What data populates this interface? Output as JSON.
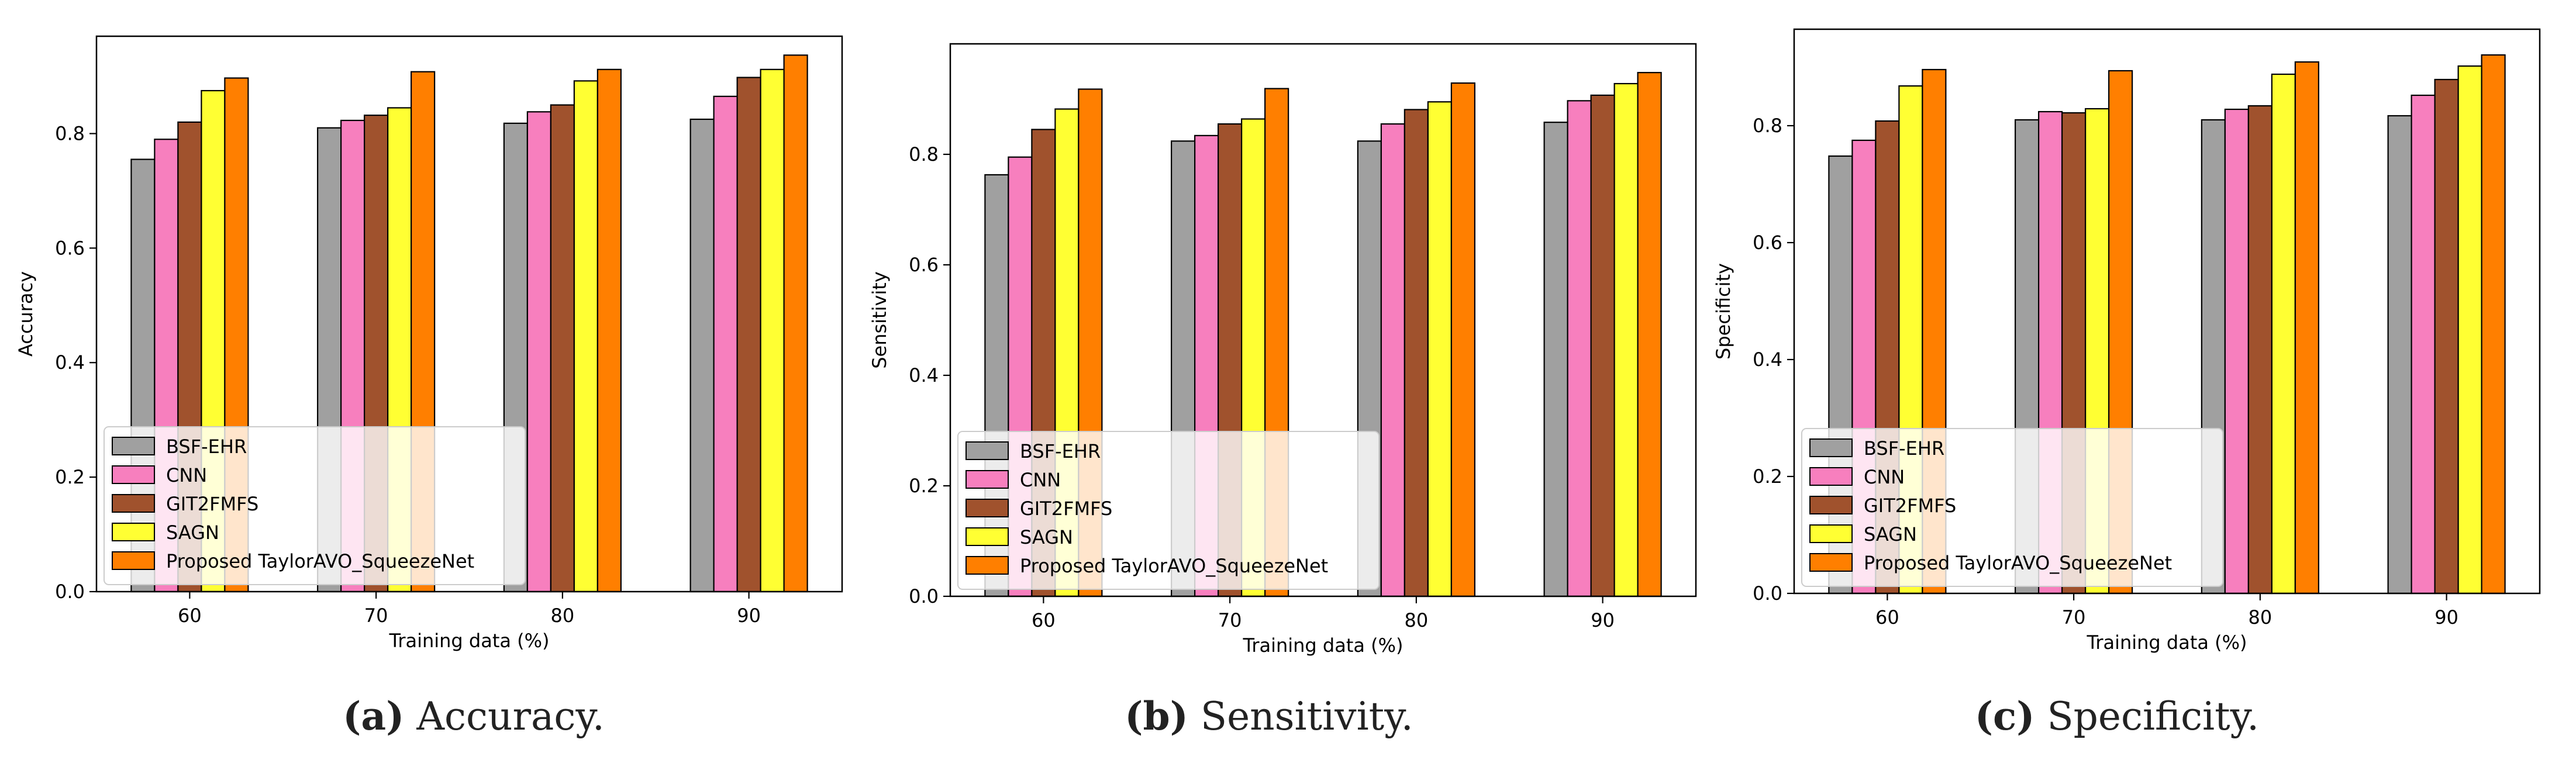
{
  "figure": {
    "legend_entries": [
      "BSF-EHR",
      "CNN",
      "GIT2FMFS",
      "SAGN",
      "Proposed TaylorAVO_SqueezeNet"
    ],
    "series_colors": [
      "#a0a0a0",
      "#f77fbe",
      "#a0522d",
      "#ffff33",
      "#ff7f00"
    ]
  },
  "chart_data": [
    {
      "type": "bar",
      "title": "",
      "xlabel": "Training data (%)",
      "ylabel": "Accuracy",
      "categories": [
        "60",
        "70",
        "80",
        "90"
      ],
      "ylim": [
        0,
        0.97
      ],
      "yticks": [
        "0.0",
        "0.2",
        "0.4",
        "0.6",
        "0.8"
      ],
      "legend_position": "lower-left",
      "series": [
        {
          "name": "BSF-EHR",
          "values": [
            0.755,
            0.81,
            0.818,
            0.825
          ]
        },
        {
          "name": "CNN",
          "values": [
            0.79,
            0.823,
            0.838,
            0.865
          ]
        },
        {
          "name": "GIT2FMFS",
          "values": [
            0.82,
            0.832,
            0.85,
            0.898
          ]
        },
        {
          "name": "SAGN",
          "values": [
            0.875,
            0.845,
            0.892,
            0.912
          ]
        },
        {
          "name": "Proposed TaylorAVO_SqueezeNet",
          "values": [
            0.897,
            0.908,
            0.912,
            0.937
          ]
        }
      ],
      "caption_label": "(a)",
      "caption_text": "Accuracy."
    },
    {
      "type": "bar",
      "title": "",
      "xlabel": "Training data (%)",
      "ylabel": "Sensitivity",
      "categories": [
        "60",
        "70",
        "80",
        "90"
      ],
      "ylim": [
        0,
        1.0
      ],
      "yticks": [
        "0.0",
        "0.2",
        "0.4",
        "0.6",
        "0.8"
      ],
      "legend_position": "lower-left",
      "series": [
        {
          "name": "BSF-EHR",
          "values": [
            0.763,
            0.824,
            0.824,
            0.858
          ]
        },
        {
          "name": "CNN",
          "values": [
            0.795,
            0.834,
            0.855,
            0.897
          ]
        },
        {
          "name": "GIT2FMFS",
          "values": [
            0.845,
            0.855,
            0.881,
            0.907
          ]
        },
        {
          "name": "SAGN",
          "values": [
            0.882,
            0.864,
            0.895,
            0.928
          ]
        },
        {
          "name": "Proposed TaylorAVO_SqueezeNet",
          "values": [
            0.918,
            0.919,
            0.929,
            0.948
          ]
        }
      ],
      "caption_label": "(b)",
      "caption_text": "Sensitivity."
    },
    {
      "type": "bar",
      "title": "",
      "xlabel": "Training data (%)",
      "ylabel": "Specificity",
      "categories": [
        "60",
        "70",
        "80",
        "90"
      ],
      "ylim": [
        0,
        0.965
      ],
      "yticks": [
        "0.0",
        "0.2",
        "0.4",
        "0.6",
        "0.8"
      ],
      "legend_position": "lower-left",
      "series": [
        {
          "name": "BSF-EHR",
          "values": [
            0.748,
            0.81,
            0.81,
            0.817
          ]
        },
        {
          "name": "CNN",
          "values": [
            0.775,
            0.824,
            0.828,
            0.852
          ]
        },
        {
          "name": "GIT2FMFS",
          "values": [
            0.808,
            0.822,
            0.834,
            0.879
          ]
        },
        {
          "name": "SAGN",
          "values": [
            0.868,
            0.829,
            0.888,
            0.902
          ]
        },
        {
          "name": "Proposed TaylorAVO_SqueezeNet",
          "values": [
            0.896,
            0.894,
            0.909,
            0.921
          ]
        }
      ],
      "caption_label": "(c)",
      "caption_text": "Specificity."
    }
  ]
}
